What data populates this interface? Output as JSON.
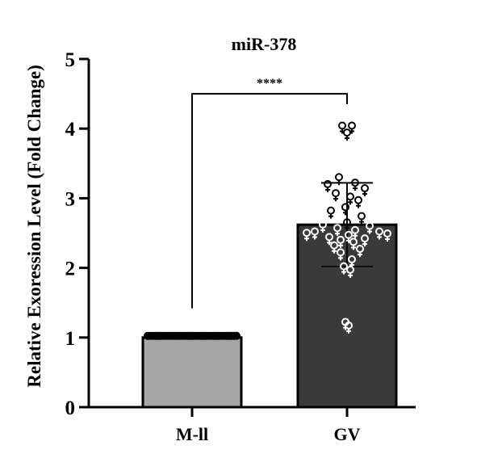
{
  "chart_data": {
    "type": "bar",
    "title": "miR-378",
    "ylabel": "Relative Exoression Level (Fold Change)",
    "xlabel": "",
    "ylim": [
      0,
      5
    ],
    "yticks": [
      "0",
      "1",
      "2",
      "3",
      "4",
      "5"
    ],
    "categories": [
      "M-ll",
      "GV"
    ],
    "values": [
      1.0,
      2.62
    ],
    "error": [
      0.0,
      0.6
    ],
    "colors": [
      "#a6a6a6",
      "#3a3a3a"
    ],
    "significance": "****",
    "points": [
      {
        "category": "M-ll",
        "y": [
          1,
          1,
          1,
          1,
          1,
          1,
          1,
          1,
          1,
          1,
          1,
          1,
          1,
          1,
          1,
          1,
          1,
          1,
          1,
          1,
          1,
          1,
          1,
          1,
          1,
          1,
          1,
          1,
          1,
          1,
          1,
          1,
          1,
          1,
          1,
          1
        ]
      },
      {
        "category": "GV",
        "y": [
          4.02,
          4.02,
          3.92,
          3.28,
          3.2,
          3.18,
          3.12,
          3.05,
          3.0,
          2.95,
          2.85,
          2.8,
          2.72,
          2.63,
          2.6,
          2.58,
          2.55,
          2.52,
          2.5,
          2.5,
          2.48,
          2.47,
          2.45,
          2.42,
          2.4,
          2.38,
          2.35,
          2.3,
          2.25,
          2.2,
          2.1,
          2.0,
          1.95,
          1.2,
          1.15
        ]
      }
    ]
  }
}
